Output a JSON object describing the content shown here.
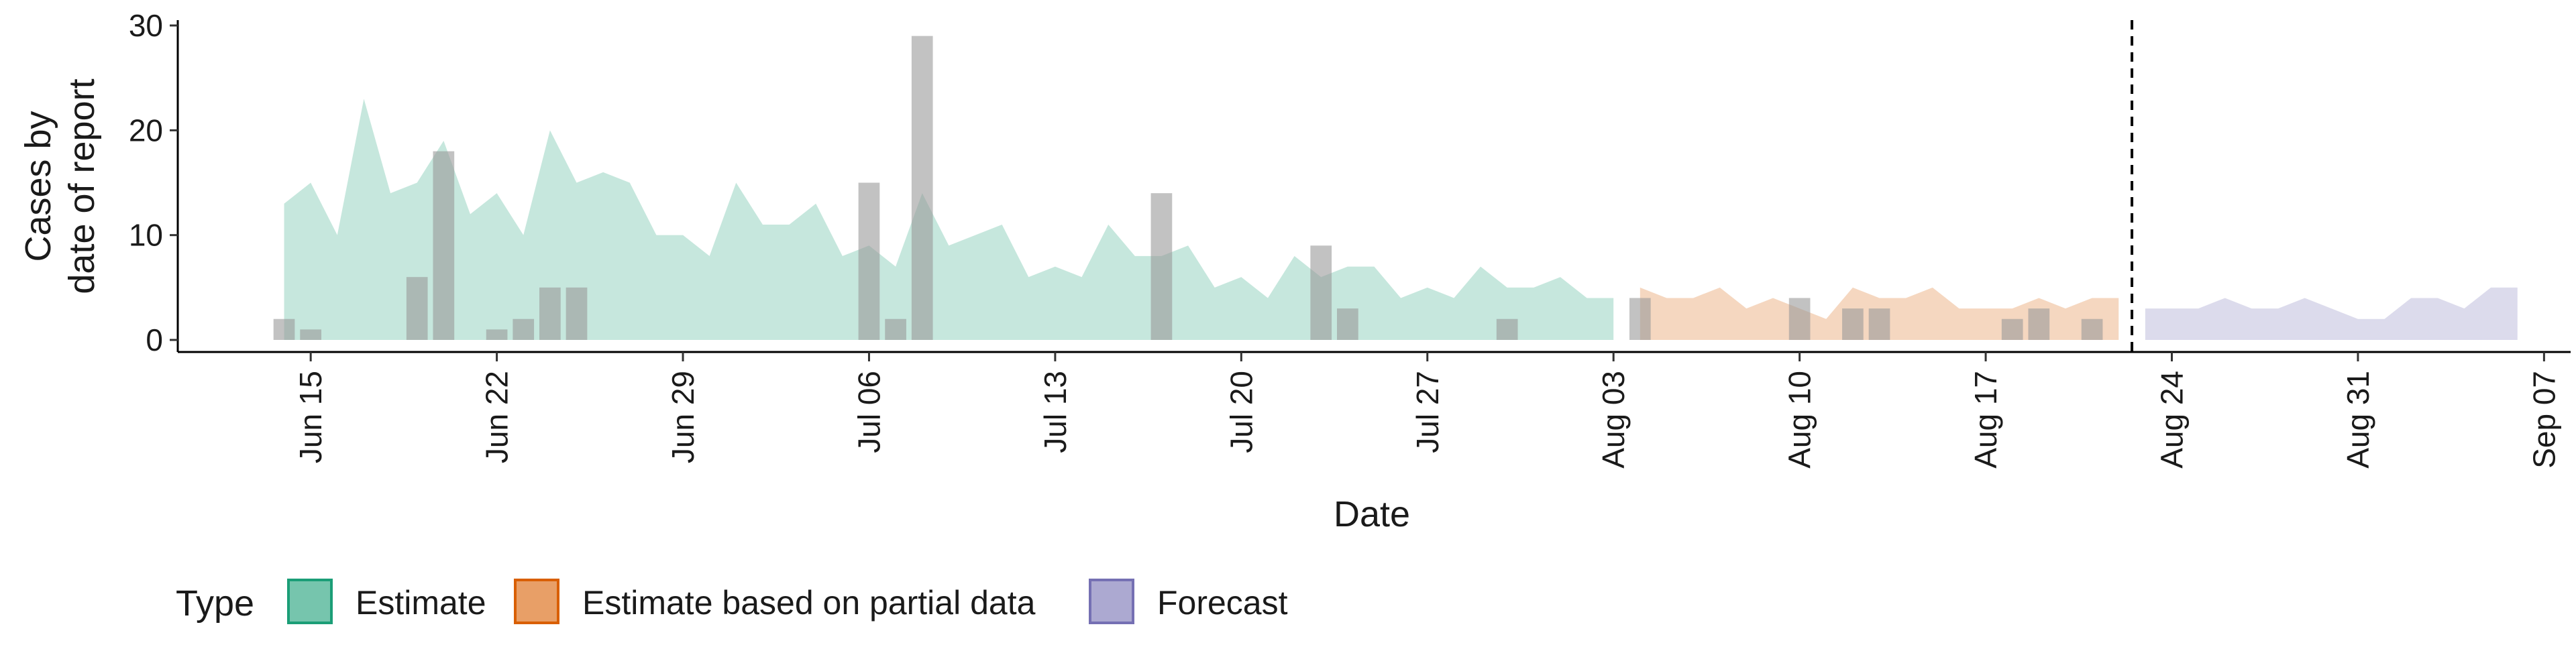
{
  "chart_data": {
    "type": "area",
    "ylabel_lines": [
      "Cases by",
      "date of report"
    ],
    "xlabel": "Date",
    "ylim": [
      0,
      30
    ],
    "yticks": [
      0,
      10,
      20,
      30
    ],
    "xlim": [
      "2020-06-10",
      "2020-09-08"
    ],
    "xticks": [
      {
        "date": "2020-06-15",
        "label": "Jun 15"
      },
      {
        "date": "2020-06-22",
        "label": "Jun 22"
      },
      {
        "date": "2020-06-29",
        "label": "Jun 29"
      },
      {
        "date": "2020-07-06",
        "label": "Jul 06"
      },
      {
        "date": "2020-07-13",
        "label": "Jul 13"
      },
      {
        "date": "2020-07-20",
        "label": "Jul 20"
      },
      {
        "date": "2020-07-27",
        "label": "Jul 27"
      },
      {
        "date": "2020-08-03",
        "label": "Aug 03"
      },
      {
        "date": "2020-08-10",
        "label": "Aug 10"
      },
      {
        "date": "2020-08-17",
        "label": "Aug 17"
      },
      {
        "date": "2020-08-24",
        "label": "Aug 24"
      },
      {
        "date": "2020-08-31",
        "label": "Aug 31"
      },
      {
        "date": "2020-09-07",
        "label": "Sep 07"
      }
    ],
    "forecast_date": "2020-08-22",
    "grid": false,
    "legend": {
      "title": "Type",
      "placement": "bottom-left",
      "entries": [
        "Estimate",
        "Estimate based on partial data",
        "Forecast"
      ]
    },
    "series": [
      {
        "name": "Estimate",
        "color": "#1b9e77",
        "dates": [
          "2020-06-14",
          "2020-06-15",
          "2020-06-16",
          "2020-06-17",
          "2020-06-18",
          "2020-06-19",
          "2020-06-20",
          "2020-06-21",
          "2020-06-22",
          "2020-06-23",
          "2020-06-24",
          "2020-06-25",
          "2020-06-26",
          "2020-06-27",
          "2020-06-28",
          "2020-06-29",
          "2020-06-30",
          "2020-07-01",
          "2020-07-02",
          "2020-07-03",
          "2020-07-04",
          "2020-07-05",
          "2020-07-06",
          "2020-07-07",
          "2020-07-08",
          "2020-07-09",
          "2020-07-10",
          "2020-07-11",
          "2020-07-12",
          "2020-07-13",
          "2020-07-14",
          "2020-07-15",
          "2020-07-16",
          "2020-07-17",
          "2020-07-18",
          "2020-07-19",
          "2020-07-20",
          "2020-07-21",
          "2020-07-22",
          "2020-07-23",
          "2020-07-24",
          "2020-07-25",
          "2020-07-26",
          "2020-07-27",
          "2020-07-28",
          "2020-07-29",
          "2020-07-30",
          "2020-07-31",
          "2020-08-01",
          "2020-08-02",
          "2020-08-03"
        ],
        "values": [
          13,
          15,
          10,
          23,
          14,
          15,
          19,
          12,
          14,
          10,
          20,
          15,
          16,
          15,
          10,
          10,
          8,
          15,
          11,
          11,
          13,
          8,
          9,
          7,
          14,
          9,
          10,
          11,
          6,
          7,
          6,
          11,
          8,
          8,
          9,
          5,
          6,
          4,
          8,
          6,
          7,
          7,
          4,
          5,
          4,
          7,
          5,
          5,
          6,
          4,
          4
        ]
      },
      {
        "name": "Estimate based on partial data",
        "color": "#d95f02",
        "dates": [
          "2020-08-04",
          "2020-08-05",
          "2020-08-06",
          "2020-08-07",
          "2020-08-08",
          "2020-08-09",
          "2020-08-10",
          "2020-08-11",
          "2020-08-12",
          "2020-08-13",
          "2020-08-14",
          "2020-08-15",
          "2020-08-16",
          "2020-08-17",
          "2020-08-18",
          "2020-08-19",
          "2020-08-20",
          "2020-08-21",
          "2020-08-22"
        ],
        "values": [
          5,
          4,
          4,
          5,
          3,
          4,
          3,
          2,
          5,
          4,
          4,
          5,
          3,
          3,
          3,
          4,
          3,
          4,
          4
        ]
      },
      {
        "name": "Forecast",
        "color": "#7570b3",
        "dates": [
          "2020-08-23",
          "2020-08-24",
          "2020-08-25",
          "2020-08-26",
          "2020-08-27",
          "2020-08-28",
          "2020-08-29",
          "2020-08-30",
          "2020-08-31",
          "2020-09-01",
          "2020-09-02",
          "2020-09-03",
          "2020-09-04",
          "2020-09-05",
          "2020-09-06"
        ],
        "values": [
          3,
          3,
          3,
          4,
          3,
          3,
          4,
          3,
          2,
          2,
          4,
          4,
          3,
          5,
          5
        ]
      }
    ],
    "bars": {
      "color": "#999999",
      "dates": [
        "2020-06-14",
        "2020-06-15",
        "2020-06-19",
        "2020-06-20",
        "2020-06-22",
        "2020-06-23",
        "2020-06-24",
        "2020-06-25",
        "2020-07-06",
        "2020-07-07",
        "2020-07-08",
        "2020-07-17",
        "2020-07-23",
        "2020-07-24",
        "2020-07-30",
        "2020-08-04",
        "2020-08-10",
        "2020-08-12",
        "2020-08-13",
        "2020-08-18",
        "2020-08-19",
        "2020-08-21"
      ],
      "values": [
        2,
        1,
        6,
        18,
        1,
        2,
        5,
        5,
        15,
        2,
        29,
        14,
        9,
        3,
        2,
        4,
        4,
        3,
        3,
        2,
        3,
        2
      ]
    }
  }
}
